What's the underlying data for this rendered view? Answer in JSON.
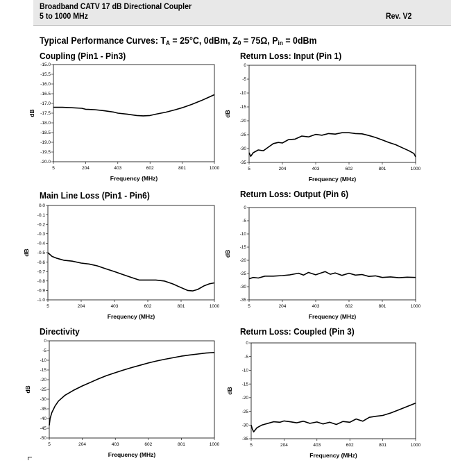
{
  "header": {
    "title": "Broadband CATV 17 dB Directional Coupler",
    "subtitle": "5 to 1000 MHz",
    "revision": "Rev. V2"
  },
  "curves_title": {
    "prefix": "Typical Performance Curves:  T",
    "ta_sub": "A",
    "part2": " = 25°C, 0dBm, Z",
    "z0_sub": "0",
    "part3": " = 75Ω, P",
    "pin_sub": "in",
    "part4": " = 0dBm"
  },
  "colors": {
    "line": "#000000",
    "border": "#000000",
    "header_bg": "#e8e8e8"
  },
  "chart_data": [
    {
      "id": "coupling",
      "type": "line",
      "title": "Coupling (Pin1 - Pin3)",
      "xlabel": "Frequency (MHz)",
      "ylabel": "dB",
      "xlim": [
        5,
        1000
      ],
      "ylim": [
        -20.0,
        -15.0
      ],
      "xticks": [
        5,
        204,
        403,
        602,
        801,
        1000
      ],
      "xtick_labels": [
        "5",
        "204",
        "403",
        "602",
        "801",
        "1000"
      ],
      "yticks": [
        -15.0,
        -15.5,
        -16.0,
        -16.5,
        -17.0,
        -17.5,
        -18.0,
        -18.5,
        -19.0,
        -19.5,
        -20.0
      ],
      "ytick_labels": [
        "-15.0",
        "-15.5",
        "-16.0",
        "-16.5",
        "-17.0",
        "-17.5",
        "-18.0",
        "-18.5",
        "-19.0",
        "-19.5",
        "-20.0"
      ],
      "x": [
        5,
        60,
        120,
        180,
        204,
        260,
        320,
        380,
        403,
        460,
        520,
        560,
        602,
        640,
        700,
        760,
        801,
        860,
        920,
        960,
        1000
      ],
      "y": [
        -17.2,
        -17.2,
        -17.22,
        -17.25,
        -17.3,
        -17.32,
        -17.38,
        -17.45,
        -17.5,
        -17.55,
        -17.62,
        -17.64,
        -17.62,
        -17.55,
        -17.45,
        -17.32,
        -17.22,
        -17.05,
        -16.85,
        -16.7,
        -16.55
      ]
    },
    {
      "id": "rl-input",
      "type": "line",
      "title": "Return Loss: Input (Pin 1)",
      "xlabel": "Frequency (MHz)",
      "ylabel": "dB",
      "xlim": [
        5,
        1000
      ],
      "ylim": [
        -35,
        0
      ],
      "xticks": [
        5,
        204,
        403,
        602,
        801,
        1000
      ],
      "xtick_labels": [
        "5",
        "204",
        "403",
        "602",
        "801",
        "1000"
      ],
      "yticks": [
        0,
        -5,
        -10,
        -15,
        -20,
        -25,
        -30,
        -35
      ],
      "ytick_labels": [
        "0",
        "-5",
        "-10",
        "-15",
        "-20",
        "-25",
        "-30",
        "-35"
      ],
      "x": [
        5,
        15,
        30,
        60,
        90,
        120,
        150,
        180,
        204,
        240,
        280,
        320,
        360,
        403,
        440,
        480,
        520,
        560,
        602,
        640,
        680,
        720,
        760,
        801,
        840,
        880,
        920,
        960,
        990,
        1000
      ],
      "y": [
        -31.5,
        -32.8,
        -31.5,
        -30.5,
        -30.8,
        -29.5,
        -28.2,
        -27.8,
        -28.0,
        -26.8,
        -26.6,
        -25.5,
        -25.8,
        -24.9,
        -25.2,
        -24.6,
        -24.8,
        -24.3,
        -24.3,
        -24.6,
        -24.7,
        -25.3,
        -26.0,
        -26.9,
        -27.8,
        -28.6,
        -29.7,
        -30.8,
        -31.8,
        -33.0
      ]
    },
    {
      "id": "main-line-loss",
      "type": "line",
      "title": "Main Line Loss (Pin1 - Pin6)",
      "xlabel": "Frequency (MHz)",
      "ylabel": "dB",
      "xlim": [
        5,
        1000
      ],
      "ylim": [
        -1.0,
        0.0
      ],
      "xticks": [
        5,
        204,
        403,
        602,
        801,
        1000
      ],
      "xtick_labels": [
        "5",
        "204",
        "403",
        "602",
        "801",
        "1000"
      ],
      "yticks": [
        0.0,
        -0.1,
        -0.2,
        -0.3,
        -0.4,
        -0.5,
        -0.6,
        -0.7,
        -0.8,
        -0.9,
        -1.0
      ],
      "ytick_labels": [
        "0.0",
        "-0.1",
        "-0.2",
        "-0.3",
        "-0.4",
        "-0.5",
        "-0.6",
        "-0.7",
        "-0.8",
        "-0.9",
        "-1.0"
      ],
      "x": [
        5,
        30,
        60,
        100,
        150,
        204,
        250,
        300,
        350,
        403,
        450,
        500,
        550,
        602,
        650,
        700,
        750,
        801,
        840,
        870,
        900,
        940,
        970,
        1000
      ],
      "y": [
        -0.5,
        -0.54,
        -0.56,
        -0.58,
        -0.59,
        -0.61,
        -0.62,
        -0.64,
        -0.67,
        -0.7,
        -0.73,
        -0.76,
        -0.79,
        -0.79,
        -0.79,
        -0.8,
        -0.83,
        -0.87,
        -0.9,
        -0.905,
        -0.89,
        -0.85,
        -0.83,
        -0.82
      ]
    },
    {
      "id": "rl-output",
      "type": "line",
      "title": "Return Loss: Output (Pin 6)",
      "xlabel": "Frequency (MHz)",
      "ylabel": "dB",
      "xlim": [
        5,
        1000
      ],
      "ylim": [
        -35,
        0
      ],
      "xticks": [
        5,
        204,
        403,
        602,
        801,
        1000
      ],
      "xtick_labels": [
        "5",
        "204",
        "403",
        "602",
        "801",
        "1000"
      ],
      "yticks": [
        0,
        -5,
        -10,
        -15,
        -20,
        -25,
        -30,
        -35
      ],
      "ytick_labels": [
        "0",
        "-5",
        "-10",
        "-15",
        "-20",
        "-25",
        "-30",
        "-35"
      ],
      "x": [
        5,
        30,
        60,
        100,
        150,
        204,
        250,
        300,
        330,
        360,
        403,
        430,
        460,
        490,
        520,
        560,
        602,
        640,
        680,
        720,
        760,
        801,
        850,
        900,
        950,
        1000
      ],
      "y": [
        -27.0,
        -26.5,
        -26.7,
        -26.0,
        -26.0,
        -25.8,
        -25.5,
        -24.9,
        -25.6,
        -24.6,
        -25.5,
        -24.9,
        -24.3,
        -25.3,
        -24.8,
        -25.7,
        -24.9,
        -25.6,
        -25.4,
        -26.1,
        -25.9,
        -26.5,
        -26.3,
        -26.6,
        -26.4,
        -26.5
      ]
    },
    {
      "id": "directivity",
      "type": "line",
      "title": "Directivity",
      "xlabel": "Frequency (MHz)",
      "ylabel": "dB",
      "xlim": [
        5,
        1000
      ],
      "ylim": [
        -50,
        0
      ],
      "xticks": [
        5,
        204,
        403,
        602,
        801,
        1000
      ],
      "xtick_labels": [
        "5",
        "204",
        "403",
        "602",
        "801",
        "1000"
      ],
      "yticks": [
        0,
        -5,
        -10,
        -15,
        -20,
        -25,
        -30,
        -35,
        -40,
        -45,
        -50
      ],
      "ytick_labels": [
        "0",
        "-5",
        "-10",
        "-15",
        "-20",
        "-25",
        "-30",
        "-35",
        "-40",
        "-45",
        "-50"
      ],
      "x": [
        5,
        10,
        20,
        40,
        60,
        100,
        150,
        204,
        250,
        300,
        350,
        403,
        450,
        500,
        550,
        602,
        650,
        700,
        750,
        801,
        850,
        900,
        950,
        1000
      ],
      "y": [
        -43.5,
        -40.0,
        -37.0,
        -33.5,
        -31.0,
        -28.0,
        -25.5,
        -23.2,
        -21.5,
        -19.6,
        -17.9,
        -16.4,
        -15.1,
        -13.8,
        -12.6,
        -11.4,
        -10.4,
        -9.5,
        -8.7,
        -7.9,
        -7.3,
        -6.8,
        -6.3,
        -6.0
      ]
    },
    {
      "id": "rl-coupled",
      "type": "line",
      "title": "Return Loss: Coupled (Pin 3)",
      "xlabel": "Frequency (MHz)",
      "ylabel": "dB",
      "xlim": [
        5,
        1000
      ],
      "ylim": [
        -35,
        0
      ],
      "xticks": [
        5,
        204,
        403,
        602,
        801,
        1000
      ],
      "xtick_labels": [
        "5",
        "204",
        "403",
        "602",
        "801",
        "1000"
      ],
      "yticks": [
        0,
        -5,
        -10,
        -15,
        -20,
        -25,
        -30,
        -35
      ],
      "ytick_labels": [
        "0",
        "-5",
        "-10",
        "-15",
        "-20",
        "-25",
        "-30",
        "-35"
      ],
      "x": [
        5,
        12,
        20,
        40,
        70,
        100,
        140,
        180,
        204,
        240,
        280,
        320,
        360,
        403,
        440,
        480,
        520,
        560,
        602,
        640,
        680,
        720,
        760,
        801,
        850,
        900,
        950,
        1000
      ],
      "y": [
        -30.0,
        -31.5,
        -32.5,
        -31.0,
        -30.0,
        -29.5,
        -28.8,
        -29.0,
        -28.5,
        -28.8,
        -29.2,
        -28.6,
        -29.4,
        -28.9,
        -29.6,
        -29.0,
        -29.8,
        -28.7,
        -29.0,
        -27.8,
        -28.6,
        -27.2,
        -26.8,
        -26.5,
        -25.6,
        -24.4,
        -23.2,
        -22.0
      ]
    }
  ]
}
